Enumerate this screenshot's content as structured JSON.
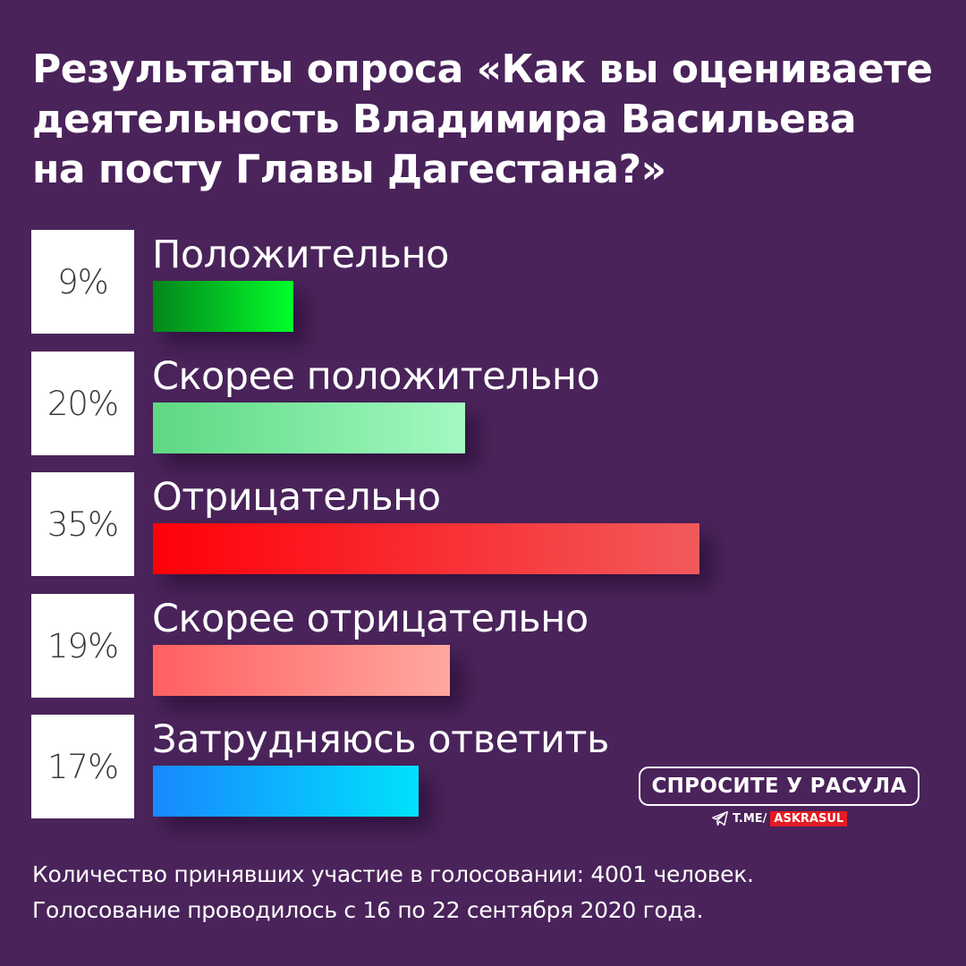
{
  "title_lines": [
    "Результаты опроса «Как вы оцениваете",
    "деятельность Владимира Васильева",
    "на посту Главы Дагестана?»"
  ],
  "chart_data": {
    "type": "bar",
    "orientation": "horizontal",
    "title": "Результаты опроса «Как вы оцениваете деятельность Владимира Васильева на посту Главы Дагестана?»",
    "categories": [
      "Положительно",
      "Скорее положительно",
      "Отрицательно",
      "Скорее отрицательно",
      "Затрудняюсь ответить"
    ],
    "values": [
      9,
      20,
      35,
      19,
      17
    ],
    "value_labels": [
      "9%",
      "20%",
      "35%",
      "19%",
      "17%"
    ],
    "unit": "%",
    "xlim": [
      0,
      35
    ],
    "grid": false,
    "colors": [
      [
        "#05841c",
        "#00ff2a"
      ],
      [
        "#5dd882",
        "#a3f9c2"
      ],
      [
        "#ff0008",
        "#f25a5c"
      ],
      [
        "#ff6060",
        "#ffa8a0"
      ],
      [
        "#1888ff",
        "#00e2fc"
      ]
    ]
  },
  "brand": {
    "label": "СПРОСИТЕ У РАСУЛА",
    "link_prefix": "T.ME/",
    "link_handle": "ASKRASUL",
    "accent": "#e41b23"
  },
  "footer_lines": [
    "Количество принявших участие в голосовании: 4001 человек.",
    "Голосование проводилось с 16 по 22 сентября 2020 года."
  ],
  "background": "#4a235a"
}
